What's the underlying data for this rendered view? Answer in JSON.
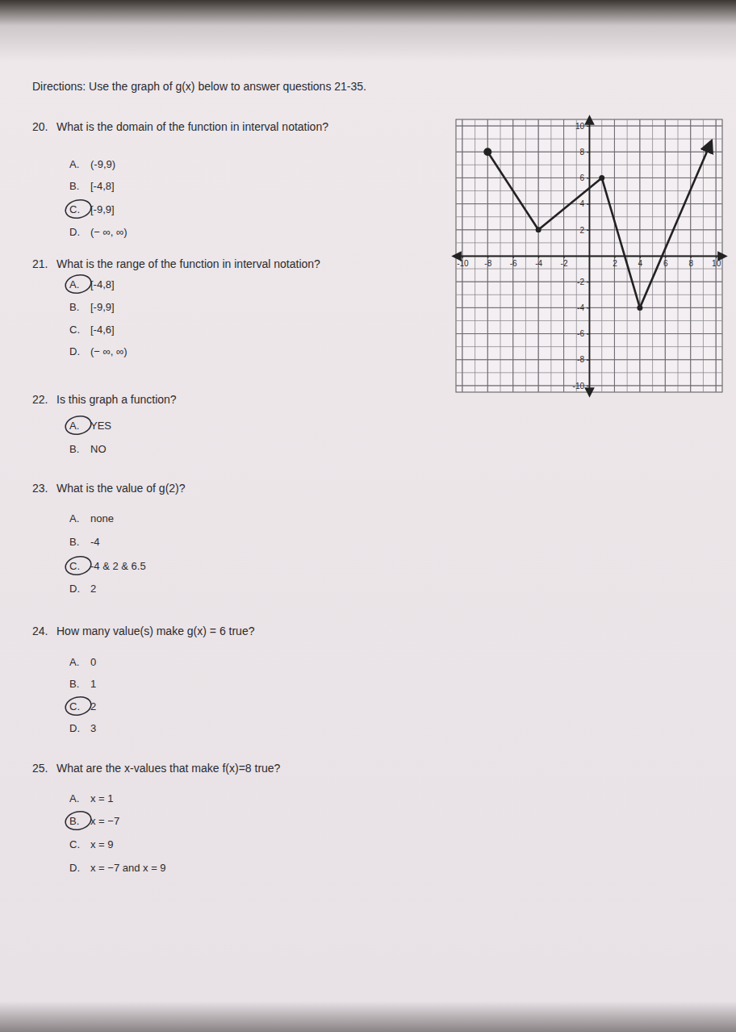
{
  "directions": "Directions: Use the graph of g(x) below to answer questions 21-35.",
  "questions": [
    {
      "number": "20.",
      "text": "What is the domain of the function in interval notation?",
      "choices": [
        {
          "letter": "A.",
          "text": "(-9,9)"
        },
        {
          "letter": "B.",
          "text": "[-4,8]"
        },
        {
          "letter": "C.",
          "text": "[-9,9]"
        },
        {
          "letter": "D.",
          "text": "(− ∞, ∞)"
        }
      ],
      "circled": 2
    },
    {
      "number": "21.",
      "text": "What is the range of the function in interval notation?",
      "choices": [
        {
          "letter": "A.",
          "text": "[-4,8]"
        },
        {
          "letter": "B.",
          "text": "[-9,9]"
        },
        {
          "letter": "C.",
          "text": "[-4,6]"
        },
        {
          "letter": "D.",
          "text": "(− ∞, ∞)"
        }
      ],
      "circled": 0
    },
    {
      "number": "22.",
      "text": "Is this graph a function?",
      "choices": [
        {
          "letter": "A.",
          "text": "YES"
        },
        {
          "letter": "B.",
          "text": "NO"
        }
      ],
      "circled": 0
    },
    {
      "number": "23.",
      "text": "What is the value of g(2)?",
      "choices": [
        {
          "letter": "A.",
          "text": "none"
        },
        {
          "letter": "B.",
          "text": "-4"
        },
        {
          "letter": "C.",
          "text": "-4 & 2 & 6.5"
        },
        {
          "letter": "D.",
          "text": "2"
        }
      ],
      "circled": 2
    },
    {
      "number": "24.",
      "text": "How many value(s) make g(x) = 6 true?",
      "choices": [
        {
          "letter": "A.",
          "text": "0"
        },
        {
          "letter": "B.",
          "text": "1"
        },
        {
          "letter": "C.",
          "text": "2"
        },
        {
          "letter": "D.",
          "text": "3"
        }
      ],
      "circled": 2
    },
    {
      "number": "25.",
      "text": "What are the x-values that make f(x)=8 true?",
      "choices": [
        {
          "letter": "A.",
          "text": "x = 1"
        },
        {
          "letter": "B.",
          "text": "x = −7"
        },
        {
          "letter": "C.",
          "text": "x = 9"
        },
        {
          "letter": "D.",
          "text": "x = −7 and x = 9"
        }
      ],
      "circled": 1
    }
  ],
  "chart_data": {
    "type": "line",
    "x": [
      -8,
      -4,
      1,
      4,
      9.5
    ],
    "values": [
      8,
      2,
      6,
      -4,
      8.5
    ],
    "color": "#222222",
    "marker": "circle",
    "xlim": [
      -10.5,
      10.5
    ],
    "ylim": [
      -10.5,
      10.5
    ],
    "xticks": [
      -10,
      -8,
      -6,
      -4,
      -2,
      2,
      4,
      6,
      8,
      10
    ],
    "yticks": [
      -10,
      -8,
      -6,
      -4,
      -2,
      2,
      4,
      6,
      8,
      10
    ],
    "grid": true
  }
}
